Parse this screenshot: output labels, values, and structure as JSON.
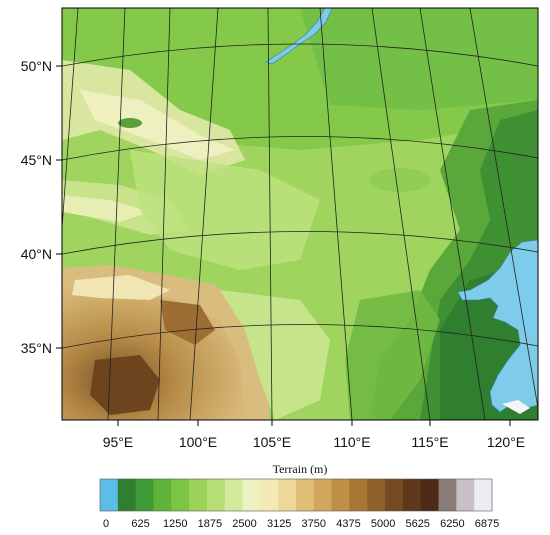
{
  "map": {
    "lat_labels": [
      "50°N",
      "45°N",
      "40°N",
      "35°N"
    ],
    "lon_labels": [
      "95°E",
      "100°E",
      "105°E",
      "110°E",
      "115°E",
      "120°E"
    ],
    "water_color": "#7ecbea",
    "grid_color": "#222222"
  },
  "colorbar": {
    "title": "Terrain (m)",
    "tick_labels": [
      "0",
      "625",
      "1250",
      "1875",
      "2500",
      "3125",
      "3750",
      "4375",
      "5000",
      "5625",
      "6250",
      "6875"
    ],
    "colors": [
      "#5cbde8",
      "#2f7f2f",
      "#3e9a34",
      "#5fb33a",
      "#7cc443",
      "#9ad25a",
      "#b7df78",
      "#d3ea9c",
      "#eef2c0",
      "#f4eab8",
      "#eed79a",
      "#e0bf78",
      "#d0a75d",
      "#bf9045",
      "#a87734",
      "#8f6029",
      "#764a20",
      "#5f371a",
      "#4c2a16",
      "#8a7c78",
      "#c7c0c4",
      "#ececf3"
    ]
  }
}
